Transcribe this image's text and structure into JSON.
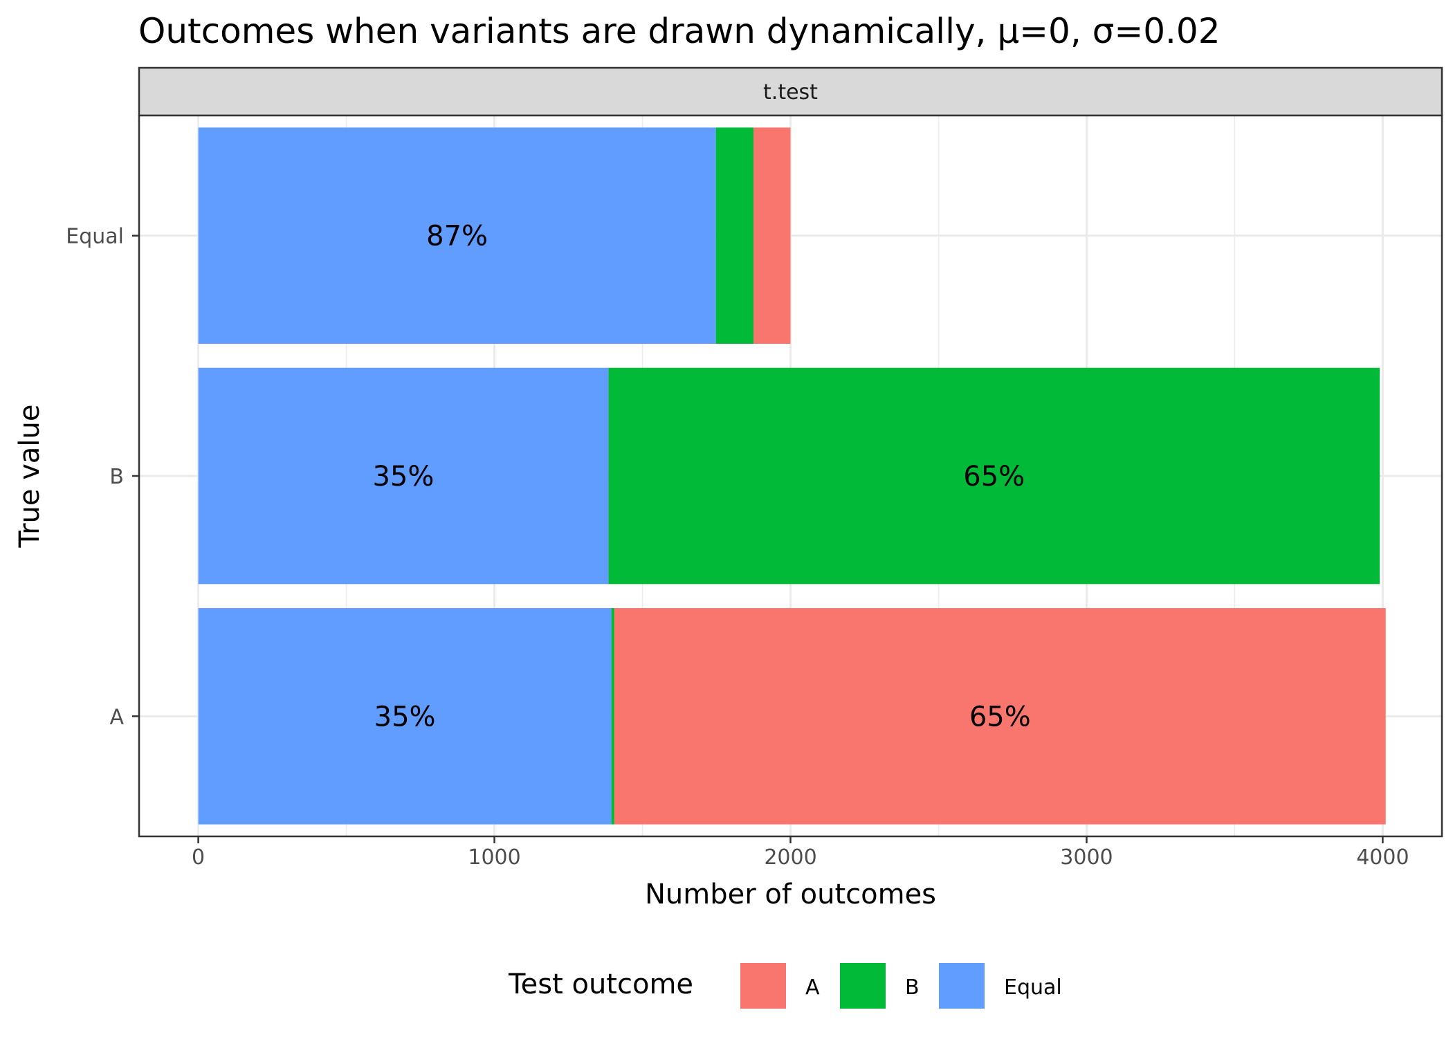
{
  "chart_data": {
    "type": "bar",
    "orientation": "horizontal",
    "stacked": true,
    "title": "Outcomes when variants are drawn dynamically, μ=0, σ=0.02",
    "facet": "t.test",
    "xlabel": "Number of outcomes",
    "ylabel": "True value",
    "xlim": [
      -200,
      4200
    ],
    "x_ticks": [
      0,
      1000,
      2000,
      3000,
      4000
    ],
    "x_tick_labels": [
      "0",
      "1000",
      "2000",
      "3000",
      "4000"
    ],
    "categories": [
      "A",
      "B",
      "Equal"
    ],
    "series": [
      {
        "name": "Equal",
        "color": "#619CFF",
        "values": [
          1395,
          1385,
          1748
        ]
      },
      {
        "name": "B",
        "color": "#00BA38",
        "values": [
          10,
          2605,
          127
        ]
      },
      {
        "name": "A",
        "color": "#F8766D",
        "values": [
          2605,
          0,
          125
        ]
      }
    ],
    "bar_labels": [
      {
        "category": "A",
        "series": "Equal",
        "text": "35%"
      },
      {
        "category": "A",
        "series": "A",
        "text": "65%"
      },
      {
        "category": "B",
        "series": "Equal",
        "text": "35%"
      },
      {
        "category": "B",
        "series": "B",
        "text": "65%"
      },
      {
        "category": "Equal",
        "series": "Equal",
        "text": "87%"
      }
    ],
    "legend": {
      "title": "Test outcome",
      "position": "bottom",
      "items": [
        {
          "label": "A",
          "color": "#F8766D"
        },
        {
          "label": "B",
          "color": "#00BA38"
        },
        {
          "label": "Equal",
          "color": "#619CFF"
        }
      ]
    },
    "grid": true
  }
}
